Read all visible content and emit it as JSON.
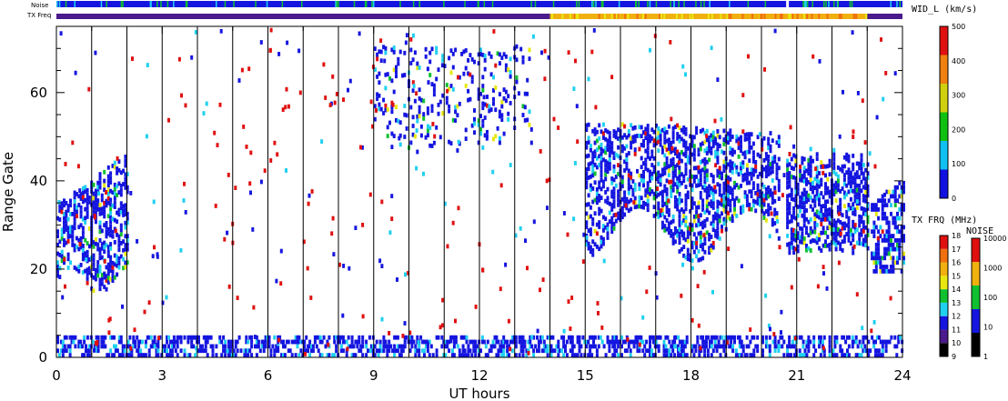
{
  "strips": {
    "noise_label": "Noise",
    "txfreq_label": "TX Freq"
  },
  "chart_data": {
    "type": "heatmap",
    "xlabel": "UT hours",
    "ylabel": "Range Gate",
    "xlim": [
      0,
      24
    ],
    "ylim": [
      0,
      75
    ],
    "xticks": [
      "0",
      "3",
      "6",
      "9",
      "12",
      "15",
      "18",
      "21",
      "24"
    ],
    "yticks": [
      "0",
      "20",
      "40",
      "60"
    ],
    "vertical_lines_every_hours": 1,
    "clusters": [
      {
        "x": [
          0.0,
          2.0
        ],
        "y": [
          15,
          48
        ],
        "density": "dense"
      },
      {
        "x": [
          9.0,
          13.5
        ],
        "y": [
          45,
          72
        ],
        "density": "sparse"
      },
      {
        "x": [
          15.0,
          20.5
        ],
        "y": [
          26,
          52
        ],
        "density": "dense"
      },
      {
        "x": [
          20.7,
          23.0
        ],
        "y": [
          22,
          48
        ],
        "density": "dense"
      },
      {
        "x": [
          23.0,
          24.0
        ],
        "y": [
          18,
          38
        ],
        "density": "dense"
      },
      {
        "x": [
          0.0,
          24.0
        ],
        "y": [
          0,
          5
        ],
        "density": "ground scatter"
      }
    ],
    "colorbars": [
      {
        "title": "WID_L (km/s)",
        "ticks": [
          "0",
          "100",
          "200",
          "300",
          "400",
          "500"
        ],
        "colors": [
          "#1010e0",
          "#10c0f0",
          "#10c010",
          "#d0d010",
          "#f08010",
          "#e01010"
        ]
      },
      {
        "title": "TX FRQ (MHz)",
        "ticks": [
          "9",
          "10",
          "11",
          "12",
          "13",
          "14",
          "15",
          "16",
          "17",
          "18"
        ],
        "colors": [
          "#000000",
          "#4b1a8c",
          "#1515e0",
          "#20d0f0",
          "#10c030",
          "#e8e810",
          "#f0b010",
          "#f07010",
          "#e01010"
        ]
      },
      {
        "title": "NOISE",
        "ticks": [
          "1",
          "10",
          "100",
          "1000",
          "10000"
        ],
        "colors": [
          "#000000",
          "#1515e0",
          "#10c030",
          "#f0b010",
          "#e01010"
        ]
      }
    ]
  }
}
